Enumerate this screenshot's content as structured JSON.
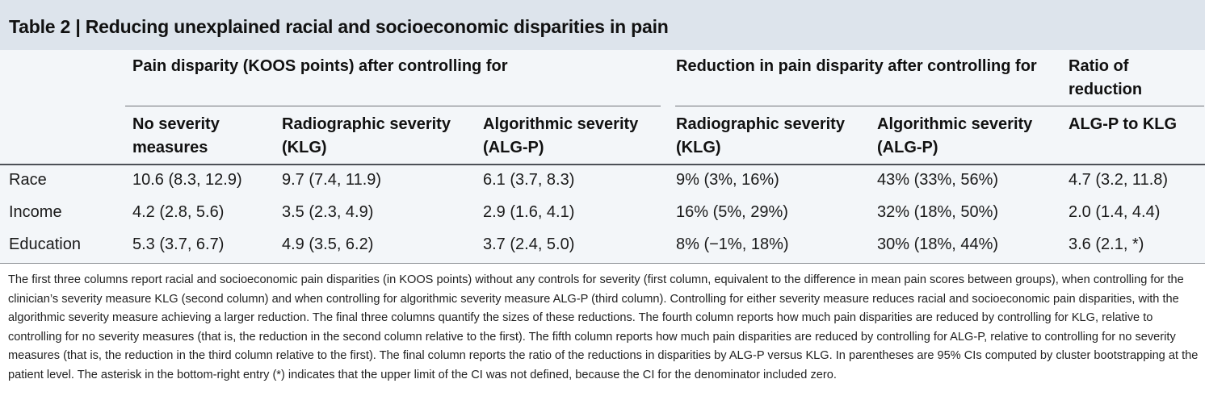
{
  "title": "Table 2 | Reducing unexplained racial and socioeconomic disparities in pain",
  "group_headers": {
    "pain_disparity": "Pain disparity (KOOS points) after controlling for",
    "reduction": "Reduction in pain disparity after controlling for",
    "ratio_line1": "Ratio of",
    "ratio_line2": "reduction"
  },
  "columns": [
    {
      "line1": "No severity",
      "line2": "measures"
    },
    {
      "line1": "Radiographic severity",
      "line2": "(KLG)"
    },
    {
      "line1": "Algorithmic severity",
      "line2": "(ALG-P)"
    },
    {
      "line1": "Radiographic severity",
      "line2": "(KLG)"
    },
    {
      "line1": "Algorithmic severity",
      "line2": "(ALG-P)"
    },
    {
      "line1": "ALG-P to KLG",
      "line2": ""
    }
  ],
  "rows": [
    {
      "label": "Race",
      "cells": [
        "10.6 (8.3, 12.9)",
        "9.7 (7.4, 11.9)",
        "6.1 (3.7, 8.3)",
        "9% (3%, 16%)",
        "43% (33%, 56%)",
        "4.7 (3.2, 11.8)"
      ]
    },
    {
      "label": "Income",
      "cells": [
        "4.2 (2.8, 5.6)",
        "3.5 (2.3, 4.9)",
        "2.9 (1.6, 4.1)",
        "16% (5%, 29%)",
        "32% (18%, 50%)",
        "2.0 (1.4, 4.4)"
      ]
    },
    {
      "label": "Education",
      "cells": [
        "5.3 (3.7, 6.7)",
        "4.9 (3.5, 6.2)",
        "3.7 (2.4, 5.0)",
        "8% (−1%, 18%)",
        "30% (18%, 44%)",
        "3.6 (2.1, *)"
      ]
    }
  ],
  "footnote": "The first three columns report racial and socioeconomic pain disparities (in KOOS points) without any controls for severity (first column, equivalent to the difference in mean pain scores between groups), when controlling for the clinician’s severity measure KLG (second column) and when controlling for algorithmic severity measure ALG-P (third column). Controlling for either severity measure reduces racial and socioeconomic pain disparities, with the algorithmic severity measure achieving a larger reduction. The final three columns quantify the sizes of these reductions. The fourth column reports how much pain disparities are reduced by controlling for KLG, relative to controlling for no severity measures (that is, the reduction in the second column relative to the first). The fifth column reports how much pain disparities are reduced by controlling for ALG-P, relative to controlling for no severity measures (that is, the reduction in the third column relative to the first). The final column reports the ratio of the reductions in disparities by ALG-P versus KLG. In parentheses are 95% CIs computed by cluster bootstrapping at the patient level. The asterisk in the bottom-right entry (*) indicates that the upper limit of the CI was not defined, because the CI for the denominator included zero.",
  "colors": {
    "title_bg": "#dde4ec",
    "table_bg": "#f3f6f9",
    "rule": "#6f7378"
  }
}
